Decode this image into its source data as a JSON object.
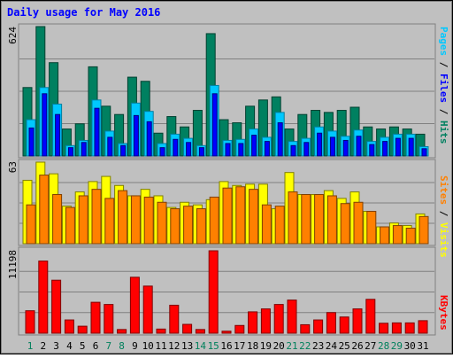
{
  "title": "Daily usage for May 2016",
  "colors": {
    "background": "#c0c0c0",
    "title_text": "#0000ff",
    "label_dark": "#000000",
    "weekend_label": "#00805c",
    "pages": "#00c8ff",
    "files": "#0000ff",
    "hits": "#008060",
    "sites": "#ff8000",
    "visits": "#ffff00",
    "kbytes": "#ff0000"
  },
  "chart_data": [
    {
      "type": "bar",
      "panel": "hits-files-pages",
      "categories": [
        "1",
        "2",
        "3",
        "4",
        "5",
        "6",
        "7",
        "8",
        "9",
        "10",
        "11",
        "12",
        "13",
        "14",
        "15",
        "16",
        "17",
        "18",
        "19",
        "20",
        "21",
        "22",
        "23",
        "24",
        "25",
        "26",
        "27",
        "28",
        "29",
        "30",
        "31"
      ],
      "weekend_days": [
        "1",
        "7",
        "8",
        "14",
        "15",
        "21",
        "22",
        "28",
        "29"
      ],
      "max_label": "624",
      "ylim": [
        0,
        624
      ],
      "legend": {
        "pages": "Pages",
        "sep1": " / ",
        "files": "Files",
        "sep2": " / ",
        "hits": "Hits"
      },
      "series": [
        {
          "name": "Hits",
          "color": "#008060",
          "values": [
            330,
            624,
            450,
            130,
            155,
            430,
            240,
            200,
            380,
            360,
            110,
            190,
            140,
            220,
            590,
            175,
            160,
            240,
            270,
            285,
            130,
            200,
            220,
            210,
            220,
            235,
            140,
            130,
            140,
            130,
            105
          ]
        },
        {
          "name": "Files",
          "color": "#00c8ff",
          "values": [
            175,
            330,
            250,
            50,
            75,
            270,
            120,
            60,
            255,
            215,
            60,
            105,
            85,
            50,
            340,
            75,
            80,
            130,
            90,
            210,
            70,
            85,
            140,
            120,
            95,
            125,
            70,
            90,
            105,
            105,
            45
          ]
        },
        {
          "name": "Pages",
          "color": "#0000ff",
          "values": [
            135,
            300,
            200,
            40,
            65,
            230,
            90,
            50,
            195,
            165,
            40,
            80,
            65,
            40,
            300,
            60,
            60,
            100,
            70,
            160,
            50,
            65,
            110,
            90,
            75,
            95,
            55,
            70,
            85,
            85,
            35
          ]
        }
      ]
    },
    {
      "type": "bar",
      "panel": "visits-sites",
      "categories": [
        "1",
        "2",
        "3",
        "4",
        "5",
        "6",
        "7",
        "8",
        "9",
        "10",
        "11",
        "12",
        "13",
        "14",
        "15",
        "16",
        "17",
        "18",
        "19",
        "20",
        "21",
        "22",
        "23",
        "24",
        "25",
        "26",
        "27",
        "28",
        "29",
        "30",
        "31"
      ],
      "max_label": "63",
      "ylim": [
        0,
        63
      ],
      "legend": {
        "sites": "Sites",
        "sep": " / ",
        "visits": "Visits"
      },
      "series": [
        {
          "name": "Visits",
          "color": "#ffff00",
          "values": [
            49,
            63,
            54,
            29,
            40,
            48,
            52,
            45,
            37,
            42,
            37,
            28,
            32,
            30,
            34,
            48,
            45,
            46,
            46,
            27,
            55,
            38,
            38,
            41,
            35,
            40,
            25,
            13,
            16,
            14,
            23
          ]
        },
        {
          "name": "Sites",
          "color": "#ff8000",
          "values": [
            30,
            53,
            38,
            28,
            37,
            42,
            35,
            41,
            37,
            36,
            32,
            27,
            29,
            27,
            36,
            43,
            44,
            42,
            30,
            29,
            40,
            38,
            38,
            37,
            31,
            32,
            25,
            13,
            14,
            12,
            21
          ]
        }
      ]
    },
    {
      "type": "bar",
      "panel": "kbytes",
      "categories": [
        "1",
        "2",
        "3",
        "4",
        "5",
        "6",
        "7",
        "8",
        "9",
        "10",
        "11",
        "12",
        "13",
        "14",
        "15",
        "16",
        "17",
        "18",
        "19",
        "20",
        "21",
        "22",
        "23",
        "24",
        "25",
        "26",
        "27",
        "28",
        "29",
        "30",
        "31"
      ],
      "max_label": "11198",
      "ylim": [
        0,
        11198
      ],
      "legend": {
        "kbytes": "KBytes"
      },
      "series": [
        {
          "name": "KBytes",
          "color": "#ff0000",
          "values": [
            3050,
            9800,
            7200,
            1800,
            950,
            4200,
            3900,
            500,
            7600,
            6400,
            560,
            3800,
            1200,
            500,
            11198,
            270,
            1050,
            2900,
            3300,
            3900,
            4500,
            1150,
            1800,
            2800,
            2200,
            3300,
            4600,
            1350,
            1400,
            1400,
            1700
          ]
        }
      ]
    }
  ]
}
